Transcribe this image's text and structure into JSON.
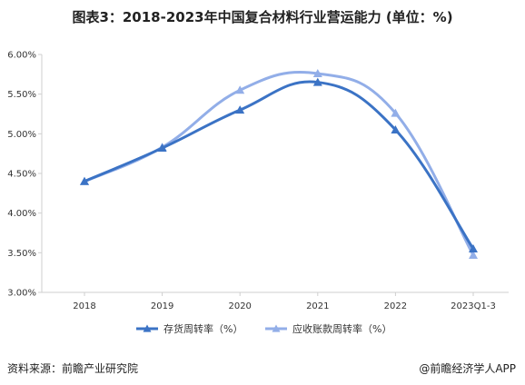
{
  "chart_data": {
    "type": "line",
    "title": "图表3：2018-2023年中国复合材料行业营运能力 (单位：%)",
    "categories": [
      "2018",
      "2019",
      "2020",
      "2021",
      "2022",
      "2023Q1-3"
    ],
    "series": [
      {
        "name": "存货周转率（%）",
        "values": [
          4.4,
          4.82,
          5.3,
          5.65,
          5.05,
          3.55
        ]
      },
      {
        "name": "应收账款周转率（%）",
        "values": [
          4.4,
          4.83,
          5.55,
          5.76,
          5.26,
          3.47
        ]
      }
    ],
    "y_ticks": [
      "3.00%",
      "3.50%",
      "4.00%",
      "4.50%",
      "5.00%",
      "5.50%",
      "6.00%"
    ],
    "ylim": [
      3.0,
      6.0
    ],
    "colors": [
      "#3b73c5",
      "#92aee8"
    ],
    "grid": false,
    "legend_position": "bottom"
  },
  "footer": {
    "source": "资料来源：前瞻产业研究院",
    "brand": "@前瞻经济学人APP"
  }
}
